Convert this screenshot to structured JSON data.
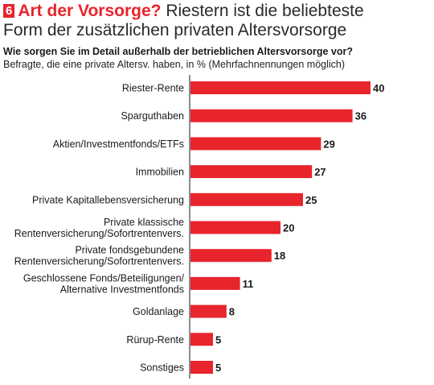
{
  "header": {
    "badge": "6",
    "title_strong": "Art der Vorsorge?",
    "title_rest": " Riestern ist die beliebteste",
    "title_line2": "Form der zusätzlichen privaten Altersvorsorge",
    "question": "Wie sorgen Sie im Detail außerhalb der betrieblichen Altersvorsorge vor?",
    "subquestion": "Befragte, die eine private Altersv. haben, in % (Mehrfachnennungen möglich)"
  },
  "colors": {
    "accent": "#e8242c",
    "bar": "#e8242c",
    "axis": "#1a1a1a"
  },
  "chart_data": {
    "type": "bar",
    "orientation": "horizontal",
    "categories": [
      [
        "Riester-Rente"
      ],
      [
        "Sparguthaben"
      ],
      [
        "Aktien/Investmentfonds/ETFs"
      ],
      [
        "Immobilien"
      ],
      [
        "Private Kapitallebensversicherung"
      ],
      [
        "Private klassische",
        "Rentenversicherung/Sofortrentenvers."
      ],
      [
        "Private fondsgebundene",
        "Rentenversicherung/Sofortrentenvers."
      ],
      [
        "Geschlossene Fonds/Beteiligungen/",
        "Alternative Investmentfonds"
      ],
      [
        "Goldanlage"
      ],
      [
        "Rürup-Rente"
      ],
      [
        "Sonstiges"
      ]
    ],
    "values": [
      40,
      36,
      29,
      27,
      25,
      20,
      18,
      11,
      8,
      5,
      5
    ],
    "unit": "%",
    "xlim": [
      0,
      40
    ],
    "grid": false,
    "legend": "none"
  }
}
